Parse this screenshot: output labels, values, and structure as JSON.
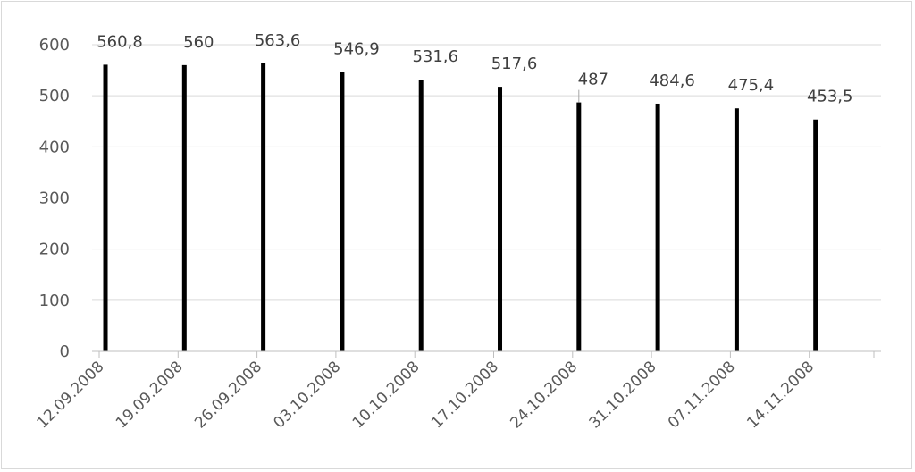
{
  "chart_data": {
    "type": "bar",
    "categories": [
      "12.09.2008",
      "19.09.2008",
      "26.09.2008",
      "03.10.2008",
      "10.10.2008",
      "17.10.2008",
      "24.10.2008",
      "31.10.2008",
      "07.11.2008",
      "14.11.2008"
    ],
    "values": [
      560.8,
      560,
      563.6,
      546.9,
      531.6,
      517.6,
      487,
      484.6,
      475.4,
      453.5
    ],
    "data_labels": [
      "560,8",
      "560",
      "563,6",
      "546,9",
      "531,6",
      "517,6",
      "487",
      "484,6",
      "475,4",
      "453,5"
    ],
    "title": "",
    "xlabel": "",
    "ylabel": "",
    "ylim": [
      0,
      600
    ],
    "yticks": [
      0,
      100,
      200,
      300,
      400,
      500,
      600
    ],
    "grid": true,
    "legend": "none",
    "colors": {
      "bar": "#000000",
      "gridline": "#d9d9d9",
      "axis": "#bfbfbf",
      "tick_text": "#595959",
      "label_text": "#404040"
    }
  }
}
